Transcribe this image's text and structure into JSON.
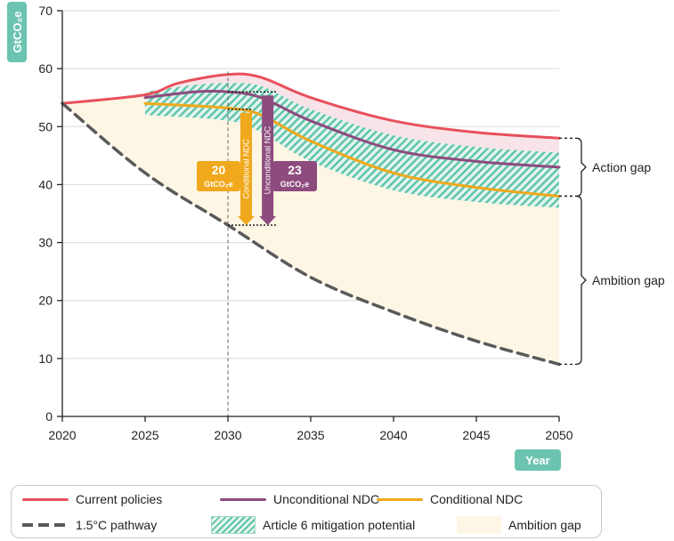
{
  "chart_data": {
    "type": "area",
    "ylabel": "GtCO₂e",
    "xlabel": "Year",
    "xlim": [
      2020,
      2050
    ],
    "ylim": [
      0,
      70
    ],
    "x_ticks": [
      "2020",
      "2025",
      "2030",
      "2035",
      "2040",
      "2045",
      "2050"
    ],
    "y_ticks": [
      "0",
      "10",
      "20",
      "30",
      "40",
      "50",
      "60",
      "70"
    ],
    "grid": "horizontal",
    "series": [
      {
        "name": "Current policies",
        "kind": "line",
        "color": "#e8505b",
        "points": [
          [
            2020,
            54
          ],
          [
            2025,
            55.5
          ],
          [
            2027,
            57.5
          ],
          [
            2030,
            59
          ],
          [
            2032,
            58.5
          ],
          [
            2035,
            55
          ],
          [
            2040,
            51
          ],
          [
            2045,
            49
          ],
          [
            2050,
            48
          ]
        ]
      },
      {
        "name": "Unconditional NDC",
        "kind": "line",
        "color": "#8e4b7e",
        "points": [
          [
            2025,
            55
          ],
          [
            2028,
            56
          ],
          [
            2030,
            56
          ],
          [
            2032,
            55
          ],
          [
            2035,
            51
          ],
          [
            2040,
            46
          ],
          [
            2045,
            44
          ],
          [
            2050,
            43
          ]
        ]
      },
      {
        "name": "Conditional NDC",
        "kind": "line",
        "color": "#f0a81c",
        "points": [
          [
            2025,
            54
          ],
          [
            2030,
            53.2
          ],
          [
            2032,
            52
          ],
          [
            2035,
            47.5
          ],
          [
            2040,
            42
          ],
          [
            2045,
            39.5
          ],
          [
            2050,
            38
          ]
        ]
      },
      {
        "name": "1.5°C pathway",
        "kind": "dashed",
        "color": "#5a5a5a",
        "points": [
          [
            2020,
            54
          ],
          [
            2025,
            42
          ],
          [
            2030,
            33
          ],
          [
            2035,
            24
          ],
          [
            2040,
            18
          ],
          [
            2045,
            13
          ],
          [
            2050,
            9
          ]
        ]
      }
    ],
    "bands": [
      {
        "name": "Article 6 mitigation potential",
        "pattern": "hatch",
        "color": "#5cc4a8",
        "upper": [
          [
            2025,
            56
          ],
          [
            2028,
            57.2
          ],
          [
            2030,
            57.5
          ],
          [
            2032,
            57
          ],
          [
            2035,
            53
          ],
          [
            2040,
            48.5
          ],
          [
            2045,
            46.5
          ],
          [
            2050,
            45.5
          ]
        ],
        "lower": [
          [
            2025,
            52
          ],
          [
            2030,
            51
          ],
          [
            2032,
            49
          ],
          [
            2035,
            44
          ],
          [
            2040,
            39
          ],
          [
            2045,
            37
          ],
          [
            2050,
            36
          ]
        ]
      },
      {
        "name": "Ambition gap",
        "pattern": "fill",
        "color": "#fdf6e4",
        "upper": "Current policies",
        "lower": "1.5°C pathway"
      }
    ],
    "annotations": {
      "conditional_gap": {
        "value": "20",
        "unit": "GtCO₂e",
        "label": "Conditional NDC",
        "from": 53,
        "to": 33,
        "color": "#f0a81c"
      },
      "unconditional_gap": {
        "value": "23",
        "unit": "GtCO₂e",
        "label": "Unconditional NDC",
        "from": 56,
        "to": 33,
        "color": "#8e4b7e"
      },
      "reference_year": 2030,
      "action_gap": {
        "label": "Action gap",
        "from": 48,
        "to": 38
      },
      "ambition_gap": {
        "label": "Ambition gap",
        "from": 38,
        "to": 9
      }
    },
    "legend": {
      "position": "bottom",
      "items": [
        {
          "label": "Current policies",
          "type": "line",
          "color": "#e8505b"
        },
        {
          "label": "Unconditional NDC",
          "type": "line",
          "color": "#8e4b7e"
        },
        {
          "label": "Conditional NDC",
          "type": "line",
          "color": "#f0a81c"
        },
        {
          "label": "1.5°C pathway",
          "type": "dashed",
          "color": "#5a5a5a"
        },
        {
          "label": "Article 6 mitigation potential",
          "type": "hatch",
          "color": "#5cc4a8"
        },
        {
          "label": "Ambition gap",
          "type": "fill",
          "color": "#fdf6e4"
        }
      ]
    },
    "accent_color": "#6cc4b0"
  }
}
